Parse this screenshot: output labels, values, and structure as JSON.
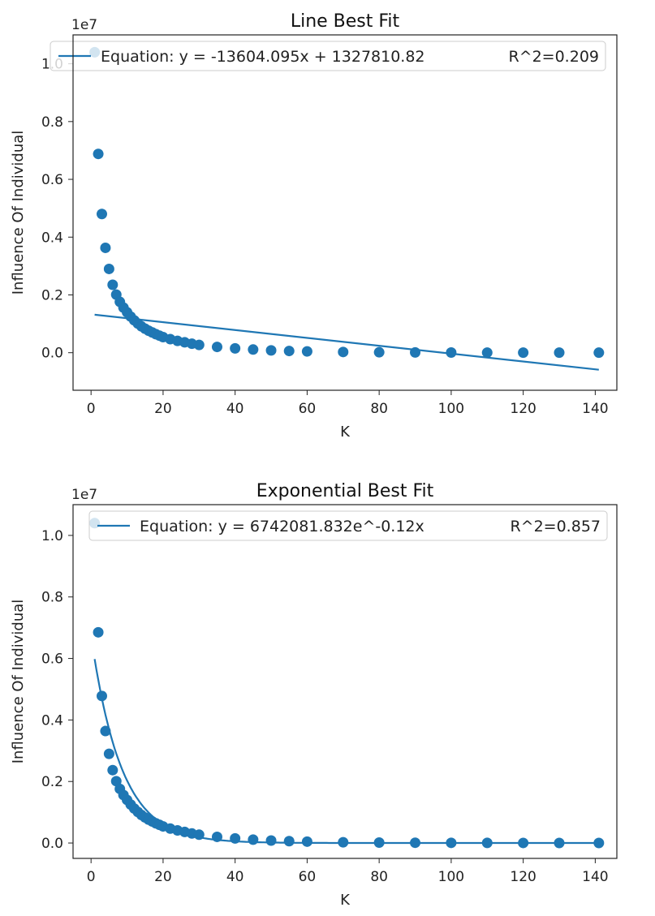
{
  "chart_data": [
    {
      "type": "scatter",
      "title": "Line Best Fit",
      "xlabel": "K",
      "ylabel": "Influence Of Individual",
      "offset_text": "1e7",
      "xlim": [
        -5,
        146
      ],
      "ylim": [
        -0.13,
        1.1
      ],
      "xticks": [
        0,
        20,
        40,
        60,
        80,
        100,
        120,
        140
      ],
      "yticks": [
        0.0,
        0.2,
        0.4,
        0.6,
        0.8,
        1.0
      ],
      "legend_position": "top",
      "legend": {
        "label": "Equation: y = -13604.095x + 1327810.82",
        "r2": "R^2=0.209"
      },
      "fit": {
        "kind": "linear",
        "slope": -13604.095,
        "intercept": 1327810.82,
        "x_range": [
          1,
          141
        ]
      },
      "series": [
        {
          "kind": "points",
          "color": "#1f77b4",
          "x": [
            1,
            2,
            3,
            4,
            5,
            6,
            7,
            8,
            9,
            10,
            11,
            12,
            13,
            14,
            15,
            16,
            17,
            18,
            19,
            20,
            22,
            24,
            26,
            28,
            30,
            35,
            40,
            45,
            50,
            55,
            60,
            70,
            80,
            90,
            100,
            110,
            120,
            130,
            141
          ],
          "y": [
            10400000,
            6880000,
            4800000,
            3630000,
            2900000,
            2350000,
            2010000,
            1760000,
            1560000,
            1400000,
            1250000,
            1120000,
            1010000,
            910000,
            830000,
            760000,
            700000,
            640000,
            590000,
            540000,
            470000,
            410000,
            360000,
            310000,
            270000,
            200000,
            150000,
            110000,
            80000,
            60000,
            45000,
            25000,
            15000,
            9000,
            6000,
            4000,
            2500,
            1500,
            800
          ]
        }
      ]
    },
    {
      "type": "scatter",
      "title": "Exponential Best Fit",
      "xlabel": "K",
      "ylabel": "Influence Of Individual",
      "offset_text": "1e7",
      "xlim": [
        -5,
        146
      ],
      "ylim": [
        -0.05,
        1.1
      ],
      "xticks": [
        0,
        20,
        40,
        60,
        80,
        100,
        120,
        140
      ],
      "yticks": [
        0.0,
        0.2,
        0.4,
        0.6,
        0.8,
        1.0
      ],
      "legend_position": "top",
      "legend": {
        "label": "Equation: y = 6742081.832e^-0.12x",
        "r2": "R^2=0.857"
      },
      "fit": {
        "kind": "exponential",
        "a": 6742081.832,
        "b": -0.12,
        "x_range": [
          1,
          141
        ]
      },
      "series": [
        {
          "kind": "points",
          "color": "#1f77b4",
          "x": [
            1,
            2,
            3,
            4,
            5,
            6,
            7,
            8,
            9,
            10,
            11,
            12,
            13,
            14,
            15,
            16,
            17,
            18,
            19,
            20,
            22,
            24,
            26,
            28,
            30,
            35,
            40,
            45,
            50,
            55,
            60,
            70,
            80,
            90,
            100,
            110,
            120,
            130,
            141
          ],
          "y": [
            10400000,
            6850000,
            4780000,
            3640000,
            2900000,
            2370000,
            2010000,
            1760000,
            1560000,
            1400000,
            1250000,
            1120000,
            1010000,
            910000,
            830000,
            760000,
            700000,
            640000,
            590000,
            540000,
            470000,
            410000,
            360000,
            310000,
            270000,
            200000,
            150000,
            110000,
            80000,
            60000,
            45000,
            25000,
            15000,
            9000,
            6000,
            4000,
            2500,
            1500,
            800
          ]
        }
      ]
    }
  ]
}
